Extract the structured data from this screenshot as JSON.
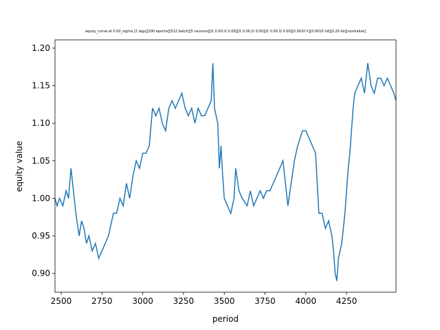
{
  "chart_data": {
    "type": "line",
    "title": "equity_curve at 0.00_sigma [2 lags][200 epochs][512 batch][5 neurons][l1 0.00,l2 0.00][l1 0.00,l2 0.00][l1 0.00,l2 0.00][0.0010 lr][0.0010 lrd][0.20 do][normalize]",
    "x_label": "period",
    "y_label": "equity value",
    "xlim": [
      2462,
      4553
    ],
    "ylim": [
      0.875,
      1.211
    ],
    "xticks": [
      2500,
      2750,
      3000,
      3250,
      3500,
      3750,
      4000,
      4250
    ],
    "yticks": [
      {
        "value": 0.9,
        "label": "0.90"
      },
      {
        "value": 0.95,
        "label": "0.95"
      },
      {
        "value": 1.0,
        "label": "1.00"
      },
      {
        "value": 1.05,
        "label": "1.05"
      },
      {
        "value": 1.1,
        "label": "1.10"
      },
      {
        "value": 1.15,
        "label": "1.15"
      },
      {
        "value": 1.2,
        "label": "1.20"
      }
    ],
    "grid": false,
    "series": [
      {
        "color": "#1f77b4",
        "x": [
          2462,
          2475,
          2490,
          2510,
          2530,
          2545,
          2560,
          2575,
          2590,
          2610,
          2625,
          2640,
          2655,
          2670,
          2690,
          2710,
          2730,
          2750,
          2770,
          2790,
          2800,
          2820,
          2840,
          2860,
          2880,
          2900,
          2920,
          2940,
          2960,
          2980,
          3000,
          3020,
          3040,
          3060,
          3080,
          3100,
          3120,
          3140,
          3160,
          3180,
          3200,
          3220,
          3240,
          3260,
          3280,
          3300,
          3320,
          3340,
          3360,
          3380,
          3400,
          3420,
          3430,
          3440,
          3460,
          3470,
          3480,
          3490,
          3500,
          3520,
          3540,
          3560,
          3570,
          3590,
          3610,
          3640,
          3660,
          3680,
          3700,
          3720,
          3740,
          3760,
          3780,
          3800,
          3820,
          3840,
          3860,
          3880,
          3890,
          3910,
          3930,
          3950,
          3980,
          4000,
          4020,
          4040,
          4060,
          4070,
          4080,
          4100,
          4120,
          4140,
          4160,
          4170,
          4180,
          4190,
          4200,
          4220,
          4240,
          4260,
          4270,
          4280,
          4290,
          4300,
          4320,
          4340,
          4360,
          4380,
          4400,
          4420,
          4440,
          4460,
          4480,
          4500,
          4520,
          4540,
          4553
        ],
        "values": [
          1.0,
          0.99,
          1.0,
          0.99,
          1.01,
          1.0,
          1.04,
          1.01,
          0.98,
          0.95,
          0.97,
          0.96,
          0.94,
          0.95,
          0.93,
          0.94,
          0.92,
          0.93,
          0.94,
          0.95,
          0.96,
          0.98,
          0.98,
          1.0,
          0.99,
          1.02,
          1.0,
          1.03,
          1.05,
          1.04,
          1.06,
          1.06,
          1.07,
          1.12,
          1.11,
          1.12,
          1.1,
          1.09,
          1.12,
          1.13,
          1.12,
          1.13,
          1.14,
          1.12,
          1.11,
          1.12,
          1.1,
          1.12,
          1.11,
          1.11,
          1.12,
          1.13,
          1.18,
          1.12,
          1.1,
          1.04,
          1.07,
          1.03,
          1.0,
          0.99,
          0.98,
          1.0,
          1.04,
          1.01,
          1.0,
          0.99,
          1.01,
          0.99,
          1.0,
          1.01,
          1.0,
          1.01,
          1.01,
          1.02,
          1.03,
          1.04,
          1.05,
          1.01,
          0.99,
          1.02,
          1.05,
          1.07,
          1.09,
          1.09,
          1.08,
          1.07,
          1.06,
          1.02,
          0.98,
          0.98,
          0.96,
          0.97,
          0.95,
          0.93,
          0.9,
          0.89,
          0.92,
          0.94,
          0.98,
          1.04,
          1.06,
          1.09,
          1.12,
          1.14,
          1.15,
          1.16,
          1.14,
          1.18,
          1.15,
          1.14,
          1.16,
          1.16,
          1.15,
          1.16,
          1.15,
          1.14,
          1.13
        ]
      }
    ]
  }
}
